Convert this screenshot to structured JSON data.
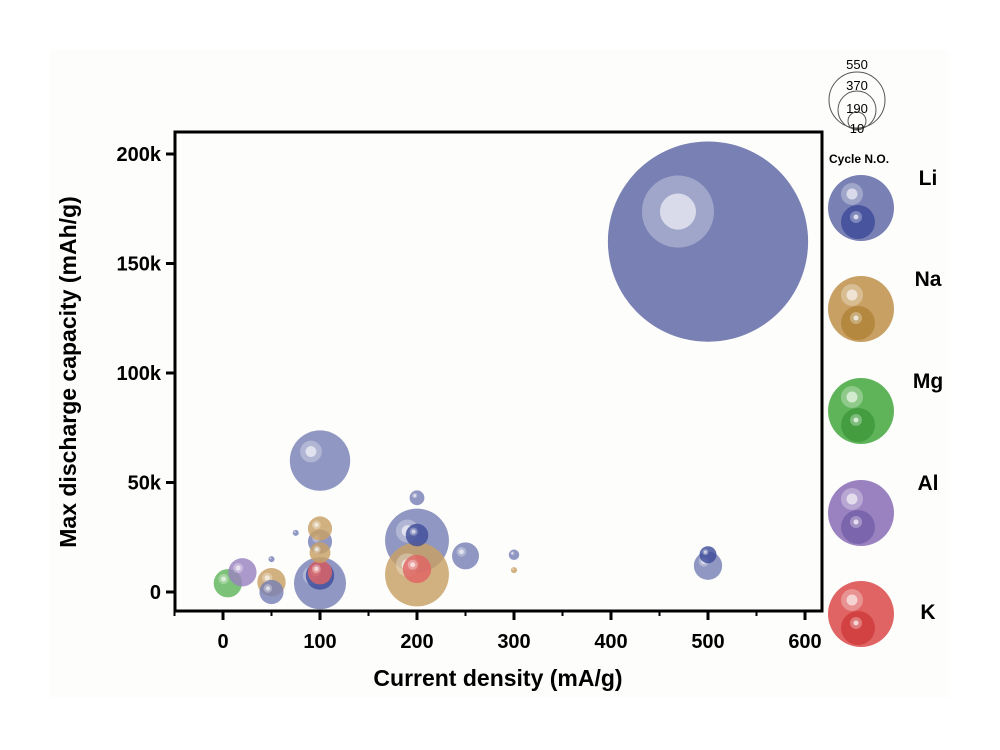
{
  "chart_data": {
    "type": "scatter",
    "subtype": "bubble",
    "title": "",
    "xlabel": "Current density (mA/g)",
    "ylabel": "Max discharge capacity (mAh/g)",
    "xlim": [
      -50,
      620
    ],
    "ylim": [
      -8000,
      210000
    ],
    "xticks": [
      0,
      100,
      200,
      300,
      400,
      500,
      600
    ],
    "xtick_labels": [
      "0",
      "100",
      "200",
      "300",
      "400",
      "500",
      "600"
    ],
    "yticks": [
      0,
      50000,
      100000,
      150000,
      200000
    ],
    "ytick_labels": [
      "0",
      "50k",
      "100k",
      "150k",
      "200k"
    ],
    "grid": false,
    "size_legend": {
      "title": "Cycle N.O.",
      "values": [
        550,
        370,
        190,
        10
      ],
      "labels": [
        "550",
        "370",
        "190",
        "10"
      ]
    },
    "legend_position": "right",
    "series": [
      {
        "name": "Li",
        "color": "#7880b4",
        "dark_color": "#3f4d9a",
        "points": [
          {
            "x": 500,
            "y": 160000,
            "cycles": 5500,
            "dark": false
          },
          {
            "x": 100,
            "y": 60000,
            "cycles": 500,
            "dark": false
          },
          {
            "x": 200,
            "y": 43000,
            "cycles": 30,
            "dark": false
          },
          {
            "x": 200,
            "y": 23500,
            "cycles": 560,
            "dark": false
          },
          {
            "x": 200,
            "y": 26000,
            "cycles": 70,
            "dark": true
          },
          {
            "x": 250,
            "y": 16500,
            "cycles": 100,
            "dark": false
          },
          {
            "x": 300,
            "y": 17000,
            "cycles": 15,
            "dark": false
          },
          {
            "x": 500,
            "y": 12000,
            "cycles": 110,
            "dark": false
          },
          {
            "x": 500,
            "y": 17000,
            "cycles": 40,
            "dark": true
          },
          {
            "x": 75,
            "y": 27000,
            "cycles": 5,
            "dark": false
          },
          {
            "x": 50,
            "y": 15000,
            "cycles": 5,
            "dark": false
          },
          {
            "x": 50,
            "y": 0,
            "cycles": 80,
            "dark": false
          },
          {
            "x": 100,
            "y": 23000,
            "cycles": 80,
            "dark": false
          },
          {
            "x": 100,
            "y": 4000,
            "cycles": 370,
            "dark": false
          },
          {
            "x": 100,
            "y": 7500,
            "cycles": 110,
            "dark": true
          }
        ]
      },
      {
        "name": "Na",
        "color": "#c8a064",
        "dark_color": "#b08438",
        "points": [
          {
            "x": 200,
            "y": 8000,
            "cycles": 560
          },
          {
            "x": 300,
            "y": 10000,
            "cycles": 5
          },
          {
            "x": 50,
            "y": 4500,
            "cycles": 110
          },
          {
            "x": 100,
            "y": 29000,
            "cycles": 80
          },
          {
            "x": 100,
            "y": 18000,
            "cycles": 60
          }
        ]
      },
      {
        "name": "Mg",
        "color": "#5fb45a",
        "dark_color": "#3f9a3c",
        "points": [
          {
            "x": 5,
            "y": 4000,
            "cycles": 110
          }
        ]
      },
      {
        "name": "Al",
        "color": "#9a82c0",
        "dark_color": "#7560a8",
        "points": [
          {
            "x": 20,
            "y": 9000,
            "cycles": 110
          }
        ]
      },
      {
        "name": "K",
        "color": "#e06464",
        "dark_color": "#d03c3c",
        "points": [
          {
            "x": 200,
            "y": 10500,
            "cycles": 110
          },
          {
            "x": 100,
            "y": 9000,
            "cycles": 80
          }
        ]
      }
    ]
  }
}
